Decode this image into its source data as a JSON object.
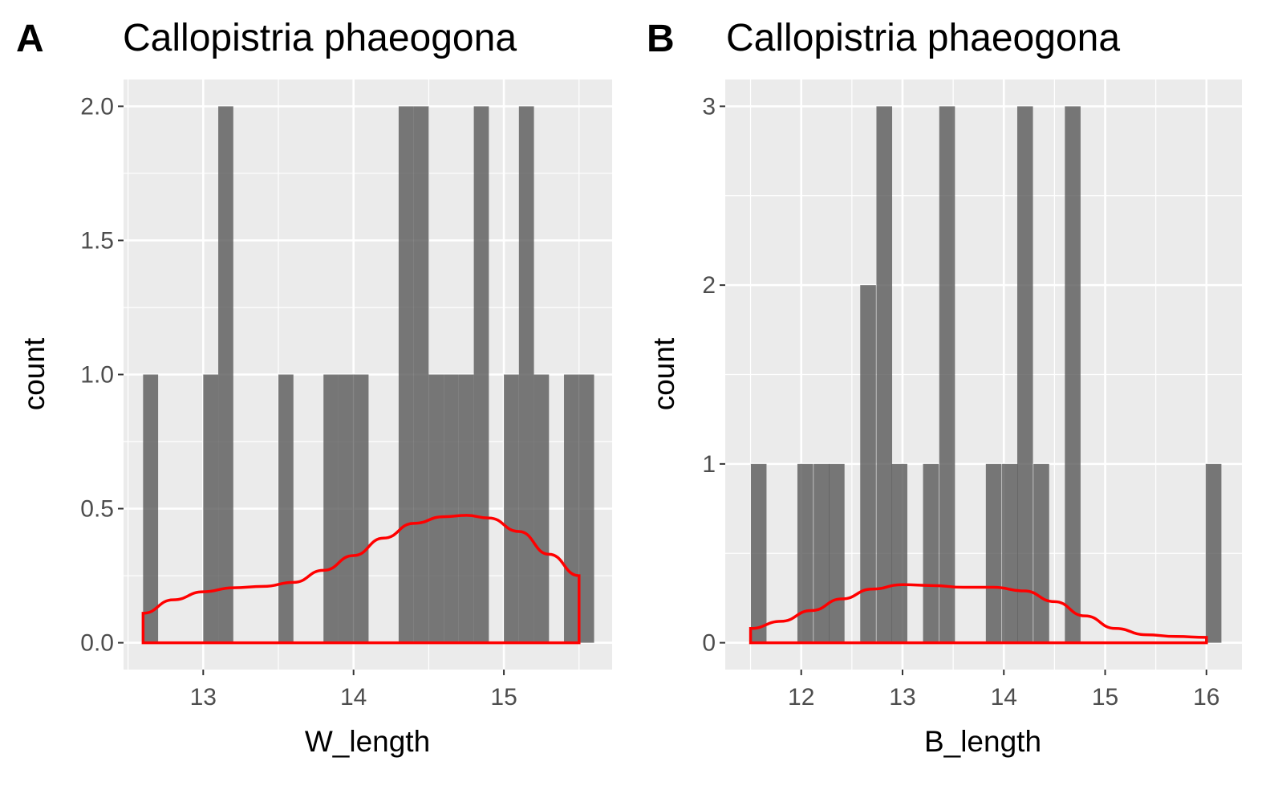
{
  "chart_data": [
    {
      "type": "bar",
      "panel_tag": "A",
      "title": "Callopistria phaeogona",
      "xlabel": "W_length",
      "ylabel": "count",
      "xlim": [
        12.47,
        15.72
      ],
      "ylim": [
        -0.1,
        2.1
      ],
      "x_ticks": [
        13,
        14,
        15
      ],
      "x_tick_labels": [
        "13",
        "14",
        "15"
      ],
      "y_ticks": [
        0,
        0.5,
        1,
        1.5,
        2
      ],
      "y_tick_labels": [
        "0.0",
        "0.5",
        "1.0",
        "1.5",
        "2.0"
      ],
      "grid": true,
      "bin_width": 0.1,
      "bars": [
        {
          "x": 12.65,
          "count": 1
        },
        {
          "x": 13.05,
          "count": 1
        },
        {
          "x": 13.15,
          "count": 2
        },
        {
          "x": 13.55,
          "count": 1
        },
        {
          "x": 13.85,
          "count": 1
        },
        {
          "x": 13.95,
          "count": 1
        },
        {
          "x": 14.05,
          "count": 1
        },
        {
          "x": 14.35,
          "count": 2
        },
        {
          "x": 14.45,
          "count": 2
        },
        {
          "x": 14.55,
          "count": 1
        },
        {
          "x": 14.65,
          "count": 1
        },
        {
          "x": 14.75,
          "count": 1
        },
        {
          "x": 14.85,
          "count": 2
        },
        {
          "x": 15.05,
          "count": 1
        },
        {
          "x": 15.15,
          "count": 2
        },
        {
          "x": 15.25,
          "count": 1
        },
        {
          "x": 15.45,
          "count": 1
        },
        {
          "x": 15.55,
          "count": 1
        }
      ],
      "density": {
        "x": [
          12.6,
          12.8,
          13.0,
          13.2,
          13.4,
          13.6,
          13.8,
          14.0,
          14.2,
          14.4,
          14.6,
          14.75,
          14.9,
          15.1,
          15.3,
          15.5
        ],
        "y": [
          0.11,
          0.16,
          0.19,
          0.205,
          0.21,
          0.225,
          0.27,
          0.325,
          0.39,
          0.445,
          0.47,
          0.475,
          0.465,
          0.415,
          0.33,
          0.25
        ]
      },
      "bar_color": "#595959",
      "density_color": "#ff0000",
      "panel_bg": "#ebebeb"
    },
    {
      "type": "bar",
      "panel_tag": "B",
      "title": "Callopistria phaeogona",
      "xlabel": "B_length",
      "ylabel": "count",
      "xlim": [
        11.25,
        16.35
      ],
      "ylim": [
        -0.15,
        3.15
      ],
      "x_ticks": [
        12,
        13,
        14,
        15,
        16
      ],
      "x_tick_labels": [
        "12",
        "13",
        "14",
        "15",
        "16"
      ],
      "y_ticks": [
        0,
        1,
        2,
        3
      ],
      "y_tick_labels": [
        "0",
        "1",
        "2",
        "3"
      ],
      "grid": true,
      "bin_width": 0.155,
      "bars": [
        {
          "x": 11.58,
          "count": 1
        },
        {
          "x": 12.04,
          "count": 1
        },
        {
          "x": 12.2,
          "count": 1
        },
        {
          "x": 12.35,
          "count": 1
        },
        {
          "x": 12.66,
          "count": 2
        },
        {
          "x": 12.82,
          "count": 3
        },
        {
          "x": 12.97,
          "count": 1
        },
        {
          "x": 13.28,
          "count": 1
        },
        {
          "x": 13.44,
          "count": 3
        },
        {
          "x": 13.9,
          "count": 1
        },
        {
          "x": 14.06,
          "count": 1
        },
        {
          "x": 14.21,
          "count": 3
        },
        {
          "x": 14.37,
          "count": 1
        },
        {
          "x": 14.68,
          "count": 3
        },
        {
          "x": 16.07,
          "count": 1
        }
      ],
      "density": {
        "x": [
          11.5,
          11.8,
          12.1,
          12.4,
          12.7,
          13.0,
          13.3,
          13.6,
          13.9,
          14.2,
          14.5,
          14.8,
          15.1,
          15.4,
          15.7,
          16.0
        ],
        "y": [
          0.08,
          0.12,
          0.18,
          0.245,
          0.3,
          0.325,
          0.32,
          0.31,
          0.31,
          0.29,
          0.23,
          0.15,
          0.08,
          0.045,
          0.035,
          0.03
        ]
      },
      "bar_color": "#595959",
      "density_color": "#ff0000",
      "panel_bg": "#ebebeb"
    }
  ]
}
